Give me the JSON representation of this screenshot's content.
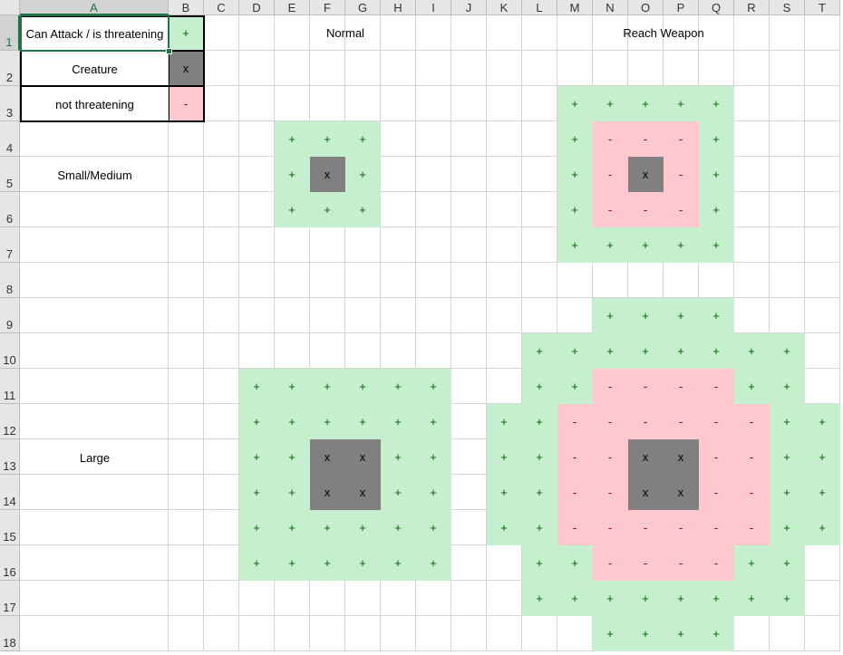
{
  "columns": [
    "A",
    "B",
    "C",
    "D",
    "E",
    "F",
    "G",
    "H",
    "I",
    "J",
    "K",
    "L",
    "M",
    "N",
    "O",
    "P",
    "Q",
    "R",
    "S",
    "T"
  ],
  "rows": [
    "1",
    "2",
    "3",
    "4",
    "5",
    "6",
    "7",
    "8",
    "9",
    "10",
    "11",
    "12",
    "13",
    "14",
    "15",
    "16",
    "17",
    "18"
  ],
  "selected_cell": "A1",
  "legend": [
    {
      "label": "Can Attack / is threatening",
      "symbol": "+"
    },
    {
      "label": "Creature",
      "symbol": "x"
    },
    {
      "label": "not threatening",
      "symbol": "-"
    }
  ],
  "headings": {
    "normal": "Normal",
    "reach": "Reach Weapon"
  },
  "size_labels": {
    "small_medium": "Small/Medium",
    "large": "Large"
  },
  "colors": {
    "threatening_fill": "#c6efce",
    "threatening_text": "#006100",
    "not_threatening_fill": "#ffc7ce",
    "not_threatening_text": "#9c0006",
    "creature_fill": "#808080"
  },
  "grid_B_to_T": [
    "+..................",
    "x..................",
    "-..........+++++...",
    "...+++.....+---+...",
    "...+x+.....+-x-+...",
    "...+++.....+---+...",
    "...........+++++...",
    "...................",
    "............++++...",
    "..........++++++++.",
    "..++++++..++----++.",
    "..++++++.++------++",
    "..++xx++.++--xx--++",
    "..++xx++.++--xx--++",
    "..++++++.++------++",
    "..++++++..++----++.",
    "..........++++++++.",
    "............++++..."
  ]
}
